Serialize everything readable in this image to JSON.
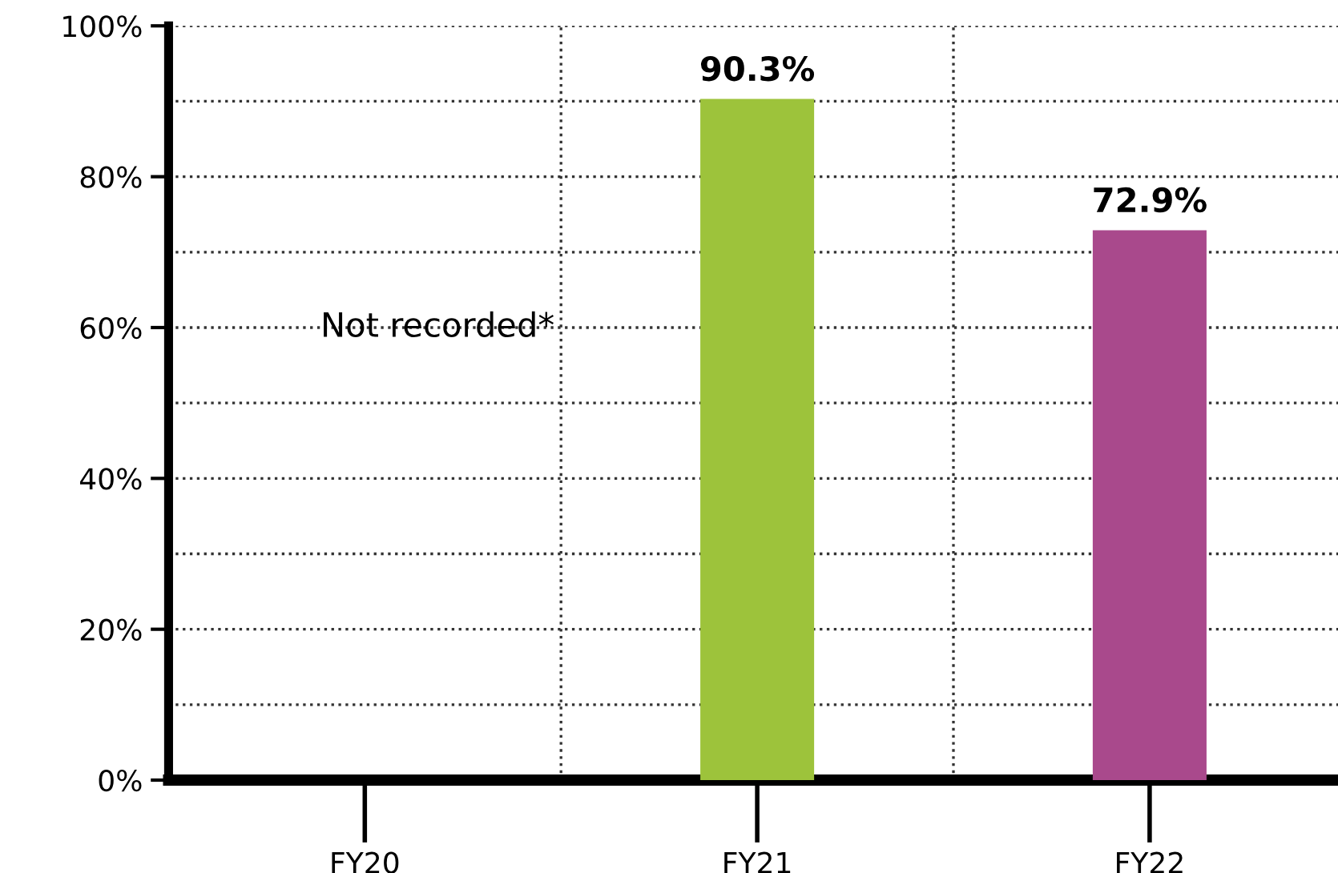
{
  "chart_data": {
    "type": "bar",
    "categories": [
      "FY20",
      "FY21",
      "FY22"
    ],
    "values": [
      null,
      90.3,
      72.9
    ],
    "colors": [
      "#888888",
      "#9dc33b",
      "#a9498c"
    ],
    "value_labels": [
      null,
      "90.3%",
      "72.9%"
    ],
    "ylim": [
      0,
      100
    ],
    "yticks": [
      {
        "value": 0,
        "label": "0%"
      },
      {
        "value": 10,
        "label": null
      },
      {
        "value": 20,
        "label": "20%"
      },
      {
        "value": 30,
        "label": null
      },
      {
        "value": 40,
        "label": "40%"
      },
      {
        "value": 50,
        "label": null
      },
      {
        "value": 60,
        "label": "60%"
      },
      {
        "value": 70,
        "label": null
      },
      {
        "value": 80,
        "label": "80%"
      },
      {
        "value": 90,
        "label": null
      },
      {
        "value": 100,
        "label": "100%"
      }
    ],
    "annotations": [
      "Not recorded*"
    ],
    "grid": true,
    "legend": false
  }
}
